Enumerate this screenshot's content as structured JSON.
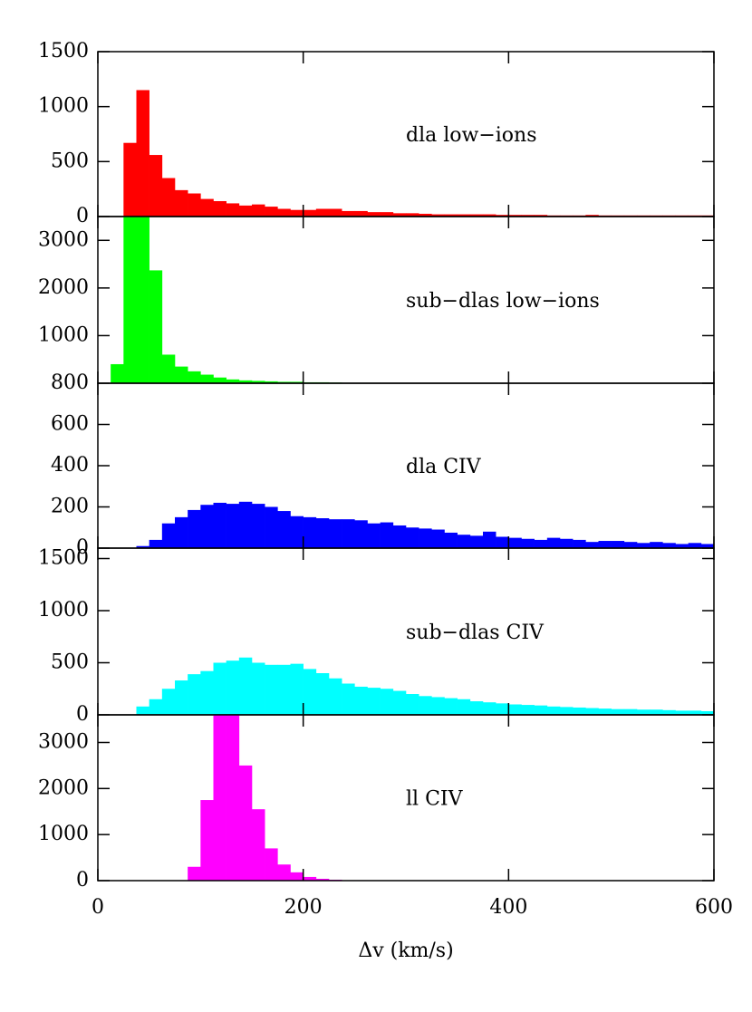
{
  "chart_data": [
    {
      "type": "histogram",
      "annotation": "dla low−ions",
      "color": "#ff0000",
      "bins": [
        0,
        12.5,
        25,
        37.5,
        50,
        62.5,
        75,
        87.5,
        100,
        112.5,
        125,
        137.5,
        150,
        162.5,
        175,
        187.5,
        200,
        212.5,
        225,
        237.5,
        250,
        262.5,
        275,
        287.5,
        300,
        312.5,
        325,
        337.5,
        350,
        362.5,
        375,
        387.5,
        400,
        412.5,
        425,
        437.5,
        450,
        462.5,
        475,
        487.5,
        500,
        512.5,
        525,
        537.5,
        550,
        562.5,
        575,
        587.5,
        600
      ],
      "counts": [
        0,
        0,
        670,
        1150,
        560,
        350,
        240,
        210,
        160,
        140,
        120,
        100,
        110,
        90,
        70,
        60,
        60,
        70,
        70,
        50,
        50,
        40,
        40,
        30,
        30,
        25,
        20,
        20,
        20,
        20,
        20,
        15,
        15,
        15,
        15,
        10,
        10,
        10,
        15,
        10,
        10,
        10,
        10,
        10,
        10,
        10,
        10,
        10
      ],
      "xlim": [
        0,
        600
      ],
      "ylim": [
        0,
        1500
      ],
      "yticks": [
        0,
        500,
        1000,
        1500
      ]
    },
    {
      "type": "histogram",
      "annotation": "sub−dlas low−ions",
      "color": "#00ff00",
      "bins": [
        0,
        12.5,
        25,
        37.5,
        50,
        62.5,
        75,
        87.5,
        100,
        112.5,
        125,
        137.5,
        150,
        162.5,
        175,
        187.5,
        200,
        212.5,
        225,
        237.5,
        250,
        262.5,
        275,
        287.5,
        300,
        312.5,
        325,
        337.5,
        350,
        362.5,
        375,
        387.5,
        400,
        412.5,
        425,
        437.5,
        450,
        462.5,
        475,
        487.5,
        500,
        512.5,
        525,
        537.5,
        550,
        562.5,
        575,
        587.5,
        600
      ],
      "counts": [
        0,
        400,
        4000,
        3600,
        2370,
        600,
        350,
        250,
        180,
        120,
        80,
        60,
        50,
        40,
        30,
        30,
        20,
        20,
        15,
        10,
        10,
        10,
        5,
        5,
        5,
        5,
        5,
        5,
        5,
        5,
        0,
        0,
        0,
        0,
        0,
        0,
        0,
        0,
        0,
        0,
        0,
        0,
        0,
        0,
        0,
        0,
        0,
        0
      ],
      "xlim": [
        0,
        600
      ],
      "ylim": [
        0,
        3500
      ],
      "yticks": [
        1000,
        2000,
        3000
      ]
    },
    {
      "type": "histogram",
      "annotation": "dla CIV",
      "color": "#0000ff",
      "bins": [
        0,
        12.5,
        25,
        37.5,
        50,
        62.5,
        75,
        87.5,
        100,
        112.5,
        125,
        137.5,
        150,
        162.5,
        175,
        187.5,
        200,
        212.5,
        225,
        237.5,
        250,
        262.5,
        275,
        287.5,
        300,
        312.5,
        325,
        337.5,
        350,
        362.5,
        375,
        387.5,
        400,
        412.5,
        425,
        437.5,
        450,
        462.5,
        475,
        487.5,
        500,
        512.5,
        525,
        537.5,
        550,
        562.5,
        575,
        587.5,
        600
      ],
      "counts": [
        0,
        0,
        0,
        10,
        40,
        120,
        150,
        185,
        210,
        220,
        215,
        225,
        215,
        200,
        180,
        155,
        150,
        145,
        140,
        140,
        135,
        120,
        125,
        110,
        100,
        95,
        90,
        75,
        65,
        60,
        80,
        55,
        50,
        45,
        40,
        50,
        45,
        40,
        30,
        35,
        35,
        30,
        25,
        30,
        25,
        20,
        25,
        20
      ],
      "xlim": [
        0,
        600
      ],
      "ylim": [
        0,
        800
      ],
      "yticks": [
        0,
        200,
        400,
        600,
        800
      ]
    },
    {
      "type": "histogram",
      "annotation": "sub−dlas CIV",
      "color": "#00ffff",
      "bins": [
        0,
        12.5,
        25,
        37.5,
        50,
        62.5,
        75,
        87.5,
        100,
        112.5,
        125,
        137.5,
        150,
        162.5,
        175,
        187.5,
        200,
        212.5,
        225,
        237.5,
        250,
        262.5,
        275,
        287.5,
        300,
        312.5,
        325,
        337.5,
        350,
        362.5,
        375,
        387.5,
        400,
        412.5,
        425,
        437.5,
        450,
        462.5,
        475,
        487.5,
        500,
        512.5,
        525,
        537.5,
        550,
        562.5,
        575,
        587.5,
        600
      ],
      "counts": [
        0,
        0,
        0,
        80,
        150,
        250,
        330,
        390,
        420,
        500,
        520,
        550,
        500,
        480,
        480,
        490,
        440,
        400,
        350,
        300,
        270,
        260,
        250,
        230,
        200,
        180,
        170,
        160,
        150,
        130,
        120,
        110,
        100,
        95,
        90,
        80,
        75,
        70,
        65,
        60,
        55,
        55,
        50,
        50,
        45,
        40,
        40,
        35
      ],
      "xlim": [
        0,
        600
      ],
      "ylim": [
        0,
        1600
      ],
      "yticks": [
        0,
        500,
        1000,
        1500
      ]
    },
    {
      "type": "histogram",
      "annotation": "ll CIV",
      "color": "#ff00ff",
      "bins": [
        0,
        12.5,
        25,
        37.5,
        50,
        62.5,
        75,
        87.5,
        100,
        112.5,
        125,
        137.5,
        150,
        162.5,
        175,
        187.5,
        200,
        212.5,
        225,
        237.5,
        250,
        262.5,
        275,
        287.5,
        300,
        312.5,
        325,
        337.5,
        350,
        362.5,
        375,
        387.5,
        400,
        412.5,
        425,
        437.5,
        450,
        462.5,
        475,
        487.5,
        500,
        512.5,
        525,
        537.5,
        550,
        562.5,
        575,
        587.5,
        600
      ],
      "counts": [
        0,
        0,
        0,
        0,
        0,
        0,
        10,
        300,
        1750,
        3900,
        3900,
        2500,
        1550,
        700,
        350,
        180,
        80,
        40,
        20,
        10,
        10,
        5,
        5,
        5,
        5,
        5,
        0,
        0,
        0,
        0,
        0,
        0,
        0,
        0,
        0,
        0,
        0,
        0,
        0,
        0,
        0,
        0,
        0,
        0,
        0,
        0,
        0,
        0
      ],
      "xlim": [
        0,
        600
      ],
      "ylim": [
        0,
        3600
      ],
      "yticks": [
        0,
        1000,
        2000,
        3000
      ],
      "xticks": [
        0,
        200,
        400,
        600
      ],
      "xlabel": "Δv (km/s)"
    }
  ]
}
